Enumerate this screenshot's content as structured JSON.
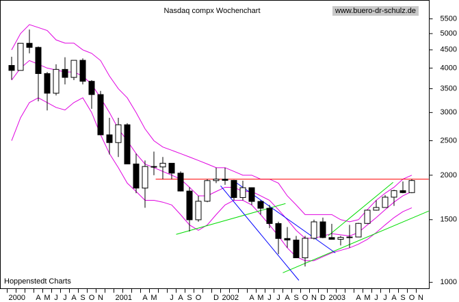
{
  "chart_data": {
    "type": "candlestick",
    "title": "Nasdaq compx Wochenchart",
    "source_url": "www.buero-dr-schulz.de",
    "credit": "Hoppenstedt Charts",
    "log_scale": true,
    "categories": [
      "2000",
      null,
      null,
      "A",
      "M",
      "J",
      "J",
      "A",
      "S",
      "O",
      "N",
      null,
      "2001",
      null,
      null,
      "A",
      "M",
      null,
      "J",
      "A",
      "S",
      "O",
      null,
      "D",
      "2002",
      null,
      null,
      "A",
      "M",
      "J",
      "J",
      "A",
      "S",
      "O",
      "N",
      "D",
      "2003",
      null,
      null,
      "A",
      "M",
      "J",
      "J",
      "A",
      "S",
      "O",
      "N"
    ],
    "open": [
      4069,
      3940,
      4696,
      4573,
      3860,
      3400,
      3966,
      3766,
      4206,
      3672,
      3370,
      2597,
      2470,
      2772,
      2151,
      1840,
      2116,
      2110,
      2161,
      2027,
      1805,
      1499,
      1690,
      1931,
      1950,
      1934,
      1731,
      1845,
      1688,
      1615,
      1463,
      1328,
      1315,
      1172,
      1330,
      1479,
      1336,
      1321,
      1337,
      1341,
      1464,
      1595,
      1623,
      1735,
      1810,
      1787,
      null
    ],
    "high": [
      4303,
      4697,
      5132,
      4600,
      3900,
      4100,
      4290,
      4200,
      4260,
      3700,
      3450,
      2900,
      2900,
      2800,
      2300,
      2200,
      2330,
      2250,
      2150,
      2050,
      1850,
      1750,
      1950,
      2100,
      2100,
      1940,
      1930,
      1850,
      1700,
      1650,
      1480,
      1430,
      1350,
      1350,
      1500,
      1520,
      1460,
      1350,
      1450,
      1470,
      1600,
      1700,
      1760,
      1820,
      1920,
      1950,
      null
    ],
    "low": [
      3711,
      3940,
      4400,
      3227,
      3042,
      3350,
      3600,
      3700,
      3600,
      3074,
      2600,
      2288,
      2250,
      2150,
      1780,
      1620,
      2000,
      1950,
      1950,
      1800,
      1390,
      1480,
      1680,
      1900,
      1880,
      1700,
      1700,
      1650,
      1550,
      1420,
      1200,
      1250,
      1170,
      1108,
      1320,
      1330,
      1320,
      1270,
      1250,
      1340,
      1460,
      1590,
      1620,
      1640,
      1780,
      1780,
      null
    ],
    "close": [
      3940,
      4696,
      4573,
      3860,
      3400,
      3966,
      3766,
      4206,
      3672,
      3370,
      2597,
      2470,
      2772,
      2151,
      1840,
      2116,
      2110,
      2161,
      2027,
      1805,
      1499,
      1690,
      1931,
      1950,
      1934,
      1731,
      1845,
      1688,
      1615,
      1463,
      1328,
      1315,
      1172,
      1330,
      1479,
      1336,
      1321,
      1337,
      1341,
      1464,
      1595,
      1623,
      1735,
      1810,
      1787,
      1932,
      null
    ],
    "bands": {
      "color": "#e000e0",
      "upper": [
        4500,
        5000,
        5300,
        5200,
        5100,
        4800,
        4700,
        4700,
        4500,
        4400,
        4200,
        3800,
        3500,
        3300,
        3000,
        2700,
        2500,
        2400,
        2350,
        2300,
        2250,
        2200,
        2150,
        2100,
        2100,
        2050,
        2000,
        2000,
        1950,
        1950,
        1900,
        1750,
        1650,
        1550,
        1550,
        1550,
        1550,
        1500,
        1480,
        1500,
        1600,
        1700,
        1780,
        1850,
        1950,
        2000,
        null
      ],
      "middle": [
        3700,
        4000,
        4200,
        4100,
        4000,
        3950,
        3900,
        3900,
        3800,
        3600,
        3300,
        3000,
        2700,
        2500,
        2300,
        2150,
        2100,
        2050,
        2000,
        1950,
        1850,
        1750,
        1750,
        1800,
        1850,
        1850,
        1800,
        1800,
        1750,
        1700,
        1600,
        1500,
        1400,
        1330,
        1330,
        1350,
        1370,
        1360,
        1350,
        1380,
        1450,
        1520,
        1600,
        1680,
        1750,
        1800,
        null
      ],
      "lower": [
        2500,
        2900,
        3200,
        3300,
        3200,
        3100,
        3050,
        3200,
        3300,
        3000,
        2600,
        2300,
        2100,
        1900,
        1800,
        1700,
        1700,
        1680,
        1650,
        1550,
        1450,
        1400,
        1450,
        1550,
        1650,
        1700,
        1700,
        1650,
        1550,
        1450,
        1350,
        1250,
        1180,
        1150,
        1150,
        1180,
        1210,
        1230,
        1250,
        1280,
        1320,
        1380,
        1450,
        1520,
        1580,
        1620,
        null
      ]
    },
    "trendlines": [
      {
        "color": "#ff0000",
        "x": [
          16.2,
          46.9
        ],
        "y": [
          1950,
          1950
        ]
      },
      {
        "color": "#00dd00",
        "x": [
          18.5,
          30.8
        ],
        "y": [
          1364,
          1665
        ]
      },
      {
        "color": "#00dd00",
        "x": [
          30.5,
          46.9
        ],
        "y": [
          1064,
          1586
        ]
      },
      {
        "color": "#00dd00",
        "x": [
          35.6,
          42.9
        ],
        "y": [
          1352,
          1910
        ]
      },
      {
        "color": "#0000ff",
        "x": [
          23.5,
          32.3
        ],
        "y": [
          1868,
          1013
        ]
      },
      {
        "color": "#0000ff",
        "x": [
          25.2,
          36.4
        ],
        "y": [
          1910,
          1210
        ]
      }
    ],
    "ylim": [
      960,
      6200
    ],
    "yticks": [
      1000,
      1500,
      2000,
      2500,
      3000,
      3500,
      4000,
      4500,
      5000,
      5500
    ]
  }
}
